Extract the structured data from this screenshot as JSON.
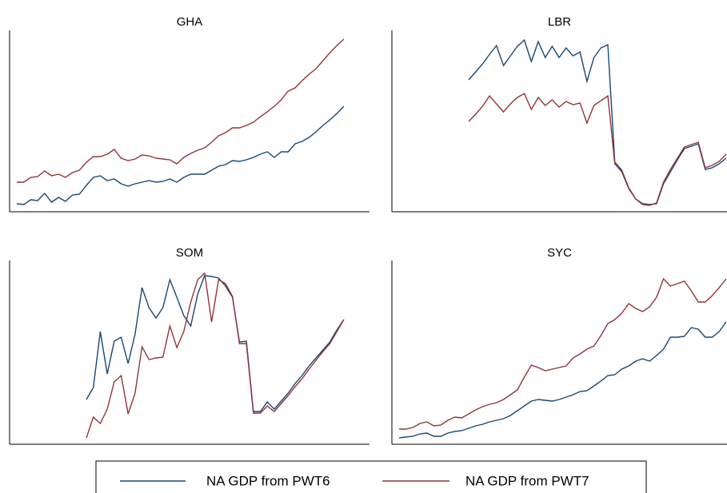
{
  "chart_data": [
    {
      "type": "line",
      "title": "GHA",
      "ylim": [
        0,
        227
      ],
      "series": [
        {
          "name": "NA GDP from PWT6",
          "color": "#1a476f",
          "values": [
            10,
            9,
            15,
            14,
            23,
            12,
            18,
            13,
            21,
            22,
            33,
            43,
            45,
            39,
            41,
            35,
            32,
            35,
            37,
            39,
            37,
            38,
            41,
            37,
            43,
            47,
            47,
            47,
            52,
            57,
            59,
            64,
            63,
            65,
            68,
            72,
            75,
            68,
            75,
            75,
            85,
            88,
            93,
            100,
            108,
            115,
            123,
            132
          ]
        },
        {
          "name": "NA GDP from PWT7",
          "color": "#90353b",
          "values": [
            37,
            37,
            43,
            44,
            51,
            45,
            47,
            43,
            49,
            52,
            62,
            69,
            69,
            72,
            78,
            67,
            64,
            66,
            71,
            70,
            67,
            66,
            65,
            60,
            68,
            73,
            77,
            80,
            87,
            95,
            99,
            105,
            105,
            108,
            112,
            119,
            125,
            132,
            140,
            151,
            155,
            164,
            172,
            179,
            189,
            199,
            208,
            216
          ]
        }
      ]
    },
    {
      "type": "line",
      "title": "LBR",
      "ylim": [
        0,
        227
      ],
      "series": [
        {
          "name": "NA GDP from PWT6",
          "color": "#1a476f",
          "values": [
            null,
            null,
            null,
            null,
            null,
            null,
            null,
            null,
            null,
            null,
            165,
            175,
            185,
            197,
            208,
            183,
            195,
            207,
            215,
            188,
            213,
            193,
            207,
            193,
            205,
            195,
            200,
            163,
            193,
            205,
            209,
            62,
            52,
            30,
            16,
            10,
            9,
            10,
            35,
            50,
            65,
            79,
            82,
            85,
            53,
            55,
            60,
            67
          ]
        },
        {
          "name": "NA GDP from PWT7",
          "color": "#90353b",
          "values": [
            null,
            null,
            null,
            null,
            null,
            null,
            null,
            null,
            null,
            null,
            113,
            122,
            132,
            145,
            135,
            125,
            135,
            143,
            148,
            128,
            143,
            133,
            140,
            131,
            138,
            134,
            136,
            111,
            133,
            139,
            145,
            60,
            50,
            29,
            16,
            9,
            8,
            11,
            37,
            53,
            67,
            81,
            84,
            87,
            55,
            58,
            63,
            72
          ]
        }
      ]
    },
    {
      "type": "line",
      "title": "SOM",
      "ylim": [
        0,
        230
      ],
      "series": [
        {
          "name": "NA GDP from PWT6",
          "color": "#1a476f",
          "values": [
            null,
            null,
            null,
            null,
            null,
            null,
            null,
            null,
            null,
            null,
            56,
            71,
            141,
            88,
            129,
            134,
            101,
            138,
            196,
            171,
            158,
            171,
            206,
            184,
            161,
            148,
            188,
            211,
            210,
            208,
            198,
            184,
            128,
            129,
            41,
            41,
            53,
            44,
            54,
            64,
            76,
            86,
            98,
            108,
            118,
            128,
            143,
            156
          ]
        },
        {
          "name": "NA GDP from PWT7",
          "color": "#90353b",
          "values": [
            null,
            null,
            null,
            null,
            null,
            null,
            null,
            null,
            null,
            null,
            8,
            34,
            26,
            44,
            78,
            86,
            38,
            64,
            122,
            106,
            108,
            109,
            148,
            121,
            141,
            178,
            206,
            214,
            153,
            206,
            201,
            185,
            126,
            126,
            39,
            39,
            48,
            41,
            51,
            61,
            72,
            82,
            94,
            105,
            116,
            126,
            141,
            156
          ]
        }
      ]
    },
    {
      "type": "line",
      "title": "SYC",
      "ylim": [
        0,
        230
      ],
      "series": [
        {
          "name": "NA GDP from PWT6",
          "color": "#1a476f",
          "values": [
            8,
            9,
            10,
            13,
            14,
            10,
            10,
            14,
            16,
            17,
            20,
            23,
            25,
            28,
            30,
            32,
            36,
            42,
            48,
            54,
            56,
            55,
            54,
            56,
            59,
            62,
            66,
            67,
            73,
            79,
            86,
            87,
            94,
            98,
            104,
            107,
            104,
            111,
            119,
            134,
            134,
            135,
            146,
            144,
            134,
            134,
            141,
            153
          ]
        },
        {
          "name": "NA GDP from PWT7",
          "color": "#90353b",
          "values": [
            19,
            19,
            21,
            26,
            28,
            23,
            24,
            30,
            34,
            33,
            38,
            43,
            47,
            50,
            52,
            56,
            62,
            68,
            84,
            99,
            96,
            92,
            94,
            96,
            98,
            108,
            113,
            119,
            123,
            136,
            151,
            156,
            164,
            176,
            170,
            166,
            172,
            184,
            207,
            198,
            201,
            204,
            192,
            178,
            178,
            186,
            196,
            207
          ]
        }
      ]
    }
  ]
}
